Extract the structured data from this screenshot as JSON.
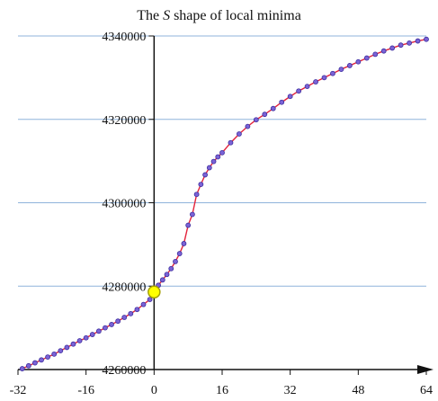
{
  "chart_data": {
    "type": "line",
    "title": {
      "prefix": "The ",
      "italic": "S",
      "suffix": " shape of local minima"
    },
    "xlabel": "",
    "ylabel": "",
    "xlim": [
      -32,
      64
    ],
    "ylim": [
      4260000,
      4340000
    ],
    "grid": {
      "horizontal": true,
      "vertical": false
    },
    "x_ticks": [
      -32,
      -16,
      0,
      16,
      32,
      48,
      64
    ],
    "y_ticks": [
      4260000,
      4280000,
      4300000,
      4320000,
      4340000
    ],
    "highlight": {
      "x": 0,
      "y": 4278600
    },
    "series": [
      {
        "color": "#e3223b",
        "marker_fill": "#7b63d6",
        "marker_stroke": "#3e2f9f",
        "x": [
          -31,
          -29.5,
          -28,
          -26.5,
          -25,
          -23.5,
          -22,
          -20.5,
          -19,
          -17.5,
          -16,
          -14.5,
          -13,
          -11.5,
          -10,
          -8.5,
          -7,
          -5.5,
          -4,
          -2.5,
          -1,
          0,
          1,
          2,
          3,
          4,
          5,
          6,
          7,
          8,
          9,
          10,
          11,
          12,
          13,
          14,
          15,
          16,
          18,
          20,
          22,
          24,
          26,
          28,
          30,
          32,
          34,
          36,
          38,
          40,
          42,
          44,
          46,
          48,
          50,
          52,
          54,
          56,
          58,
          60,
          62,
          64
        ],
        "values": [
          4260200,
          4260900,
          4261600,
          4262300,
          4263000,
          4263700,
          4264500,
          4265300,
          4266100,
          4266900,
          4267600,
          4268400,
          4269200,
          4270000,
          4270800,
          4271600,
          4272500,
          4273400,
          4274400,
          4275600,
          4276800,
          4278600,
          4280200,
          4281500,
          4282800,
          4284200,
          4285900,
          4287800,
          4290200,
          4294600,
          4297200,
          4302000,
          4304400,
          4306700,
          4308400,
          4309900,
          4311000,
          4312000,
          4314400,
          4316500,
          4318300,
          4319900,
          4321200,
          4322600,
          4324100,
          4325500,
          4326800,
          4327900,
          4329000,
          4330000,
          4331000,
          4332000,
          4332900,
          4333800,
          4334700,
          4335600,
          4336400,
          4337100,
          4337800,
          4338300,
          4338800,
          4339200
        ]
      }
    ]
  }
}
